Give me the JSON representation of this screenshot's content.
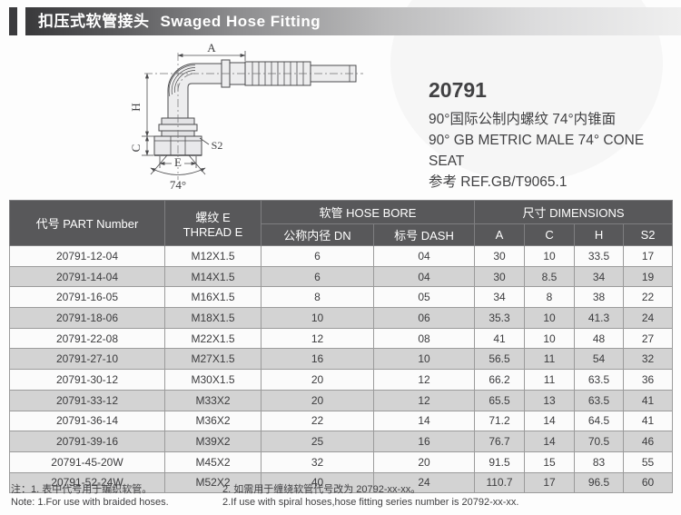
{
  "header": {
    "title_zh": "扣压式软管接头",
    "title_en": "Swaged Hose Fitting"
  },
  "product": {
    "model": "20791",
    "desc_zh": "90°国际公制内螺纹 74°内锥面",
    "desc_en": "90° GB METRIC MALE 74° CONE SEAT",
    "ref": "参考 REF.GB/T9065.1"
  },
  "drawing": {
    "labels": {
      "a": "A",
      "h": "H",
      "c": "C",
      "e": "E",
      "s2": "S2",
      "angle": "74°"
    }
  },
  "table": {
    "headers": {
      "part_number": "代号 PART Number",
      "thread_zh": "螺纹 E",
      "thread_en": "THREAD E",
      "hose_bore": "软管 HOSE BORE",
      "dimensions": "尺寸 DIMENSIONS",
      "dn": "公称内径 DN",
      "dash": "标号 DASH",
      "a": "A",
      "c": "C",
      "h": "H",
      "s2": "S2"
    },
    "rows": [
      [
        "20791-12-04",
        "M12X1.5",
        "6",
        "04",
        "30",
        "10",
        "33.5",
        "17"
      ],
      [
        "20791-14-04",
        "M14X1.5",
        "6",
        "04",
        "30",
        "8.5",
        "34",
        "19"
      ],
      [
        "20791-16-05",
        "M16X1.5",
        "8",
        "05",
        "34",
        "8",
        "38",
        "22"
      ],
      [
        "20791-18-06",
        "M18X1.5",
        "10",
        "06",
        "35.3",
        "10",
        "41.3",
        "24"
      ],
      [
        "20791-22-08",
        "M22X1.5",
        "12",
        "08",
        "41",
        "10",
        "48",
        "27"
      ],
      [
        "20791-27-10",
        "M27X1.5",
        "16",
        "10",
        "56.5",
        "11",
        "54",
        "32"
      ],
      [
        "20791-30-12",
        "M30X1.5",
        "20",
        "12",
        "66.2",
        "11",
        "63.5",
        "36"
      ],
      [
        "20791-33-12",
        "M33X2",
        "20",
        "12",
        "65.5",
        "13",
        "63.5",
        "41"
      ],
      [
        "20791-36-14",
        "M36X2",
        "22",
        "14",
        "71.2",
        "14",
        "64.5",
        "41"
      ],
      [
        "20791-39-16",
        "M39X2",
        "25",
        "16",
        "76.7",
        "14",
        "70.5",
        "46"
      ],
      [
        "20791-45-20W",
        "M45X2",
        "32",
        "20",
        "91.5",
        "15",
        "83",
        "55"
      ],
      [
        "20791-52-24W",
        "M52X2",
        "40",
        "24",
        "110.7",
        "17",
        "96.5",
        "60"
      ]
    ]
  },
  "notes": {
    "zh1": "注：1. 表中代号用于编织软管。",
    "zh2": "2. 如需用于缠绕软管代号改为 20792-xx-xx。",
    "en1": "Note: 1.For use with braided hoses.",
    "en2": "2.If use with spiral hoses,hose fitting series number is 20792-xx-xx."
  },
  "colors": {
    "accent": "#3b3b3d",
    "table_header_bg": "#58585a",
    "row_shade": "#d3d3d3",
    "line": "#4b4b4d"
  }
}
